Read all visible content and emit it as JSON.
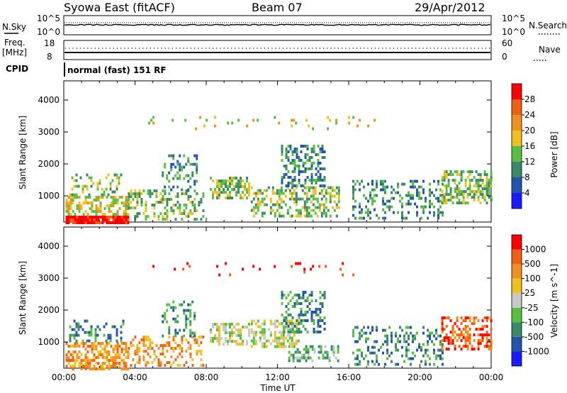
{
  "header": {
    "radar": "Syowa East (fitACF)",
    "beam": "Beam 07",
    "date": "29/Apr/2012"
  },
  "strip": {
    "nsky_label": "N.Sky",
    "nsky_ticks": [
      "10^5",
      "10^0"
    ],
    "nsearch_label": "N.Search",
    "nsearch_ticks": [
      "10^5",
      "10^0"
    ],
    "freq_label_1": "Freq.",
    "freq_label_2": "[MHz]",
    "freq_ticks": [
      "18",
      "8"
    ],
    "nave_label": "Nave",
    "nave_ticks": [
      "60",
      "0"
    ],
    "cpid_label": "CPID",
    "cpid_value": "normal (fast) 151 RF"
  },
  "chart_data": [
    {
      "type": "heatmap",
      "name": "power-panel",
      "xlabel": "Time UT",
      "ylabel": "Slant Range [km]",
      "x_range_hours": [
        0,
        24
      ],
      "x_ticks": [
        "00:00",
        "04:00",
        "08:00",
        "12:00",
        "16:00",
        "20:00",
        "00:00"
      ],
      "ylim": [
        180,
        4600
      ],
      "y_ticks": [
        1000,
        2000,
        3000,
        4000
      ],
      "colorbar": {
        "label": "Power [dB]",
        "tick_labels": [
          "4",
          "8",
          "12",
          "16",
          "20",
          "24",
          "28"
        ],
        "colors": [
          "#1a1aff",
          "#2255b0",
          "#3a8a6a",
          "#58c040",
          "#f0c020",
          "#f09020",
          "#f06010",
          "#ff0000"
        ]
      },
      "regions": [
        {
          "t0": 0.1,
          "t1": 3.6,
          "r0": 200,
          "r1": 380,
          "v": 7,
          "d": 0.95
        },
        {
          "t0": 0.1,
          "t1": 3.6,
          "r0": 380,
          "r1": 1000,
          "v": 4,
          "d": 0.55
        },
        {
          "t0": 0.3,
          "t1": 3.3,
          "r0": 1000,
          "r1": 1700,
          "v": 3,
          "d": 0.3
        },
        {
          "t0": 3.6,
          "t1": 7.8,
          "r0": 300,
          "r1": 1200,
          "v": 3,
          "d": 0.35
        },
        {
          "t0": 5.5,
          "t1": 7.5,
          "r0": 1200,
          "r1": 2300,
          "v": 2,
          "d": 0.3
        },
        {
          "t0": 8.2,
          "t1": 10.4,
          "r0": 900,
          "r1": 1600,
          "v": 3,
          "d": 0.55
        },
        {
          "t0": 10.5,
          "t1": 15.4,
          "r0": 400,
          "r1": 1300,
          "v": 3,
          "d": 0.5
        },
        {
          "t0": 12.2,
          "t1": 14.6,
          "r0": 1300,
          "r1": 2600,
          "v": 2,
          "d": 0.45
        },
        {
          "t0": 16.2,
          "t1": 21.3,
          "r0": 300,
          "r1": 1500,
          "v": 2,
          "d": 0.3
        },
        {
          "t0": 21.2,
          "t1": 24,
          "r0": 800,
          "r1": 1800,
          "v": 3,
          "d": 0.5
        },
        {
          "t0": 4.5,
          "t1": 17.5,
          "r0": 3100,
          "r1": 3500,
          "v": 4,
          "d": 0.06
        }
      ]
    },
    {
      "type": "heatmap",
      "name": "velocity-panel",
      "xlabel": "Time UT",
      "ylabel": "Slant Range [km]",
      "x_range_hours": [
        0,
        24
      ],
      "x_ticks": [
        "00:00",
        "04:00",
        "08:00",
        "12:00",
        "16:00",
        "20:00",
        "00:00"
      ],
      "ylim": [
        180,
        4600
      ],
      "y_ticks": [
        1000,
        2000,
        3000,
        4000
      ],
      "colorbar": {
        "label": "Velocity [m s^-1]",
        "tick_labels": [
          "1000",
          "500",
          "100",
          "25",
          "-25",
          "-100",
          "-500",
          "-1000"
        ],
        "colors": [
          "#1a1aff",
          "#2255b0",
          "#3a8a6a",
          "#58c040",
          "#c8c8c8",
          "#f0c020",
          "#f09020",
          "#f06010",
          "#ff0000"
        ]
      },
      "regions": [
        {
          "t0": 0.1,
          "t1": 3.6,
          "r0": 200,
          "r1": 1000,
          "v": 6,
          "d": 0.6
        },
        {
          "t0": 0.3,
          "t1": 3.3,
          "r0": 1000,
          "r1": 1700,
          "v": 2,
          "d": 0.25
        },
        {
          "t0": 3.6,
          "t1": 7.8,
          "r0": 300,
          "r1": 1200,
          "v": 6,
          "d": 0.35
        },
        {
          "t0": 5.5,
          "t1": 7.5,
          "r0": 1200,
          "r1": 2300,
          "v": 2,
          "d": 0.25
        },
        {
          "t0": 8.2,
          "t1": 10.4,
          "r0": 900,
          "r1": 1600,
          "v": 4,
          "d": 0.5
        },
        {
          "t0": 10.5,
          "t1": 13.2,
          "r0": 900,
          "r1": 1700,
          "v": 4,
          "d": 0.5
        },
        {
          "t0": 12.6,
          "t1": 15.4,
          "r0": 400,
          "r1": 900,
          "v": 3,
          "d": 0.45
        },
        {
          "t0": 12.2,
          "t1": 14.6,
          "r0": 1300,
          "r1": 2600,
          "v": 2,
          "d": 0.35
        },
        {
          "t0": 16.2,
          "t1": 21.3,
          "r0": 300,
          "r1": 1500,
          "v": 2,
          "d": 0.3
        },
        {
          "t0": 21.2,
          "t1": 24,
          "r0": 800,
          "r1": 1800,
          "v": 7,
          "d": 0.45
        },
        {
          "t0": 4.5,
          "t1": 17.5,
          "r0": 3100,
          "r1": 3500,
          "v": 8,
          "d": 0.05
        }
      ]
    }
  ]
}
